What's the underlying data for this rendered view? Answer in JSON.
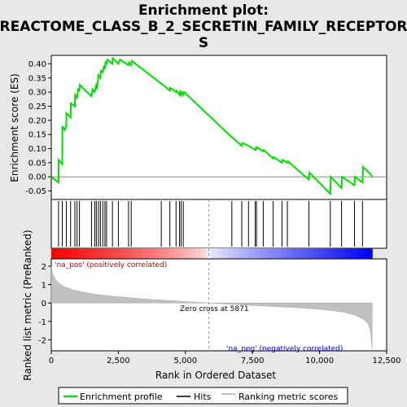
{
  "chart_data": {
    "type": "line",
    "title_line1": "Enrichment plot:",
    "title_line2": "REACTOME_CLASS_B_2_SECRETIN_FAMILY_RECEPTOR",
    "title_line3": "S",
    "es_panel": {
      "ylabel": "Enrichment score (ES)",
      "ylim": [
        -0.08,
        0.43
      ],
      "yticks": [
        -0.05,
        0.0,
        0.05,
        0.1,
        0.15,
        0.2,
        0.25,
        0.3,
        0.35,
        0.4
      ],
      "ytick_labels": [
        "-0.05",
        "0.00",
        "0.05",
        "0.10",
        "0.15",
        "0.20",
        "0.25",
        "0.30",
        "0.35",
        "0.40"
      ],
      "series": [
        {
          "name": "Enrichment profile",
          "color": "#00dd00",
          "x": [
            0,
            270,
            275,
            410,
            415,
            500,
            560,
            565,
            720,
            730,
            880,
            890,
            960,
            1000,
            1050,
            1060,
            1500,
            1540,
            1620,
            1680,
            1700,
            1760,
            1830,
            1850,
            1920,
            1960,
            2000,
            2020,
            2060,
            2090,
            2280,
            2290,
            2500,
            2560,
            2880,
            2900,
            2980,
            3000,
            4100,
            4110,
            4420,
            4430,
            4650,
            4680,
            4780,
            4800,
            4840,
            4860,
            4920,
            4950,
            6730,
            6740,
            7100,
            7120,
            7350,
            7360,
            7600,
            7620,
            7650,
            7660,
            7900,
            7920,
            8270,
            8290,
            8600,
            8620,
            8800,
            8820,
            9600,
            9620,
            10400,
            10420,
            10820,
            10840,
            11300,
            11320,
            11600,
            11620,
            11900,
            11960
          ],
          "y": [
            0.0,
            -0.02,
            0.06,
            0.045,
            0.18,
            0.165,
            0.18,
            0.225,
            0.21,
            0.26,
            0.25,
            0.29,
            0.28,
            0.31,
            0.305,
            0.325,
            0.285,
            0.31,
            0.3,
            0.33,
            0.31,
            0.36,
            0.35,
            0.375,
            0.37,
            0.39,
            0.385,
            0.405,
            0.4,
            0.415,
            0.4,
            0.42,
            0.4,
            0.415,
            0.395,
            0.405,
            0.395,
            0.41,
            0.33,
            0.33,
            0.305,
            0.315,
            0.3,
            0.305,
            0.29,
            0.3,
            0.29,
            0.3,
            0.29,
            0.3,
            0.14,
            0.14,
            0.11,
            0.12,
            0.11,
            0.11,
            0.095,
            0.105,
            0.095,
            0.105,
            0.09,
            0.095,
            0.065,
            0.07,
            0.05,
            0.06,
            0.05,
            0.055,
            -0.01,
            0.015,
            -0.06,
            0.0,
            -0.04,
            0.0,
            -0.03,
            0.0,
            -0.02,
            0.035,
            0.01,
            0.0
          ]
        }
      ]
    },
    "hits_positions": [
      270,
      410,
      560,
      720,
      880,
      960,
      1050,
      1500,
      1620,
      1680,
      1760,
      1830,
      1920,
      2000,
      2060,
      2280,
      2500,
      2880,
      2980,
      4100,
      4420,
      4650,
      4780,
      4840,
      4920,
      6730,
      7100,
      7350,
      7600,
      7650,
      7900,
      8270,
      8600,
      8800,
      9600,
      10400,
      10820,
      11300,
      11600
    ],
    "rank_panel": {
      "ylabel": "Ranked list metric (PreRanked)",
      "ylim": [
        -2.6,
        2.4
      ],
      "yticks": [
        -2,
        -1,
        0,
        1,
        2
      ],
      "ytick_labels": [
        "-2",
        "-1",
        "0",
        "1",
        "2"
      ],
      "x": [
        0,
        50,
        150,
        300,
        500,
        800,
        1200,
        1800,
        2500,
        3500,
        4500,
        5871,
        7000,
        8500,
        9500,
        10300,
        10900,
        11300,
        11600,
        11800,
        11900,
        11960
      ],
      "y": [
        2.0,
        1.6,
        1.3,
        1.05,
        0.88,
        0.72,
        0.58,
        0.44,
        0.34,
        0.22,
        0.12,
        0.0,
        -0.09,
        -0.2,
        -0.28,
        -0.38,
        -0.5,
        -0.65,
        -0.85,
        -1.1,
        -1.5,
        -2.5
      ],
      "zero_cross_label": "Zero cross at 5871",
      "pos_label": "'na_pos' (positively correlated)",
      "neg_label": "'na_neg' (negatively correlated)"
    },
    "zero_cross": 5871,
    "xlabel": "Rank in Ordered Dataset",
    "xlim": [
      0,
      12500
    ],
    "xticks": [
      0,
      2500,
      5000,
      7500,
      10000,
      12500
    ],
    "xtick_labels": [
      "0",
      "2,500",
      "5,000",
      "7,500",
      "10,000",
      "12,500"
    ],
    "n_genes": 11960,
    "legend": [
      "Enrichment profile",
      "Hits",
      "Ranking metric scores"
    ],
    "colors": {
      "profile": "#00dd00",
      "pos_label": "#cc0000",
      "neg_label": "#0000cc",
      "fill": "#c0c0c0",
      "background": "#e8e8e8"
    }
  }
}
